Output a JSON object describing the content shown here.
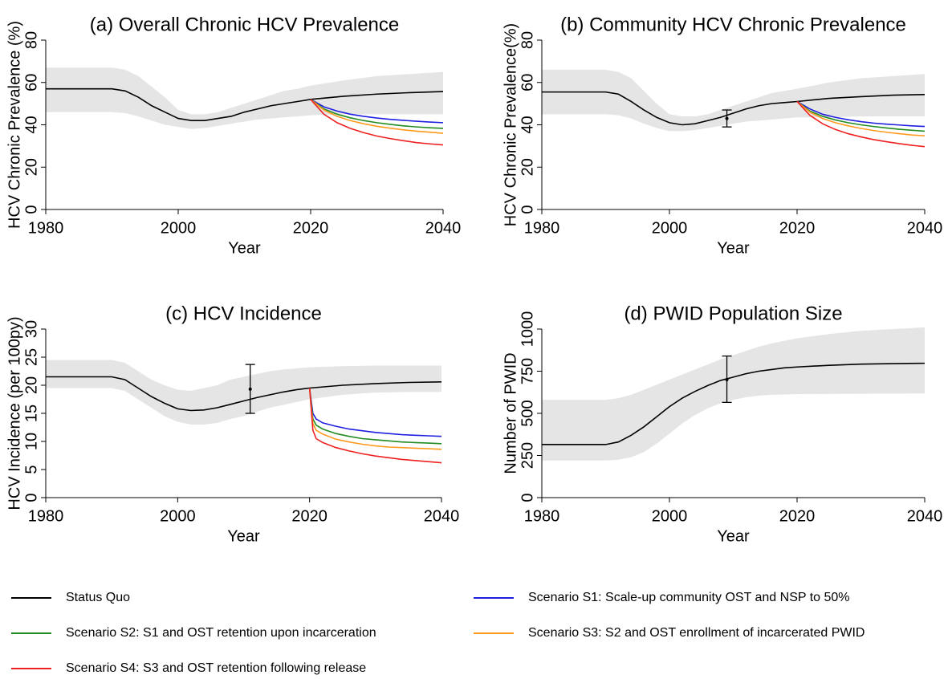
{
  "chart_data": [
    {
      "type": "line",
      "title": "(a) Overall Chronic HCV Prevalence",
      "xlabel": "Year",
      "ylabel": "HCV Chronic Prevalence (%)",
      "xlim": [
        1980,
        2040
      ],
      "xticks": [
        1980,
        2000,
        2020,
        2040
      ],
      "ylim": [
        0,
        80
      ],
      "yticks": [
        0,
        20,
        40,
        60,
        80
      ],
      "band": {
        "color": "#e5e5e5",
        "x": [
          1980,
          1985,
          1990,
          1992,
          1994,
          1996,
          1998,
          2000,
          2002,
          2004,
          2006,
          2008,
          2010,
          2012,
          2014,
          2016,
          2018,
          2020,
          2025,
          2030,
          2035,
          2040
        ],
        "upper": [
          67,
          67,
          67,
          66,
          63,
          58,
          53,
          47,
          45,
          45,
          46,
          48,
          50,
          52,
          54,
          56,
          57,
          58.5,
          61,
          63,
          64,
          65
        ],
        "lower": [
          46,
          46,
          46,
          45.5,
          44,
          42,
          40,
          39,
          38,
          38.5,
          39.5,
          40.5,
          41.5,
          42.5,
          43,
          43.5,
          44,
          44.5,
          45,
          45,
          45,
          45
        ]
      },
      "series": [
        {
          "color": "#000000",
          "x": [
            1980,
            1985,
            1990,
            1992,
            1994,
            1996,
            1998,
            2000,
            2002,
            2004,
            2006,
            2008,
            2010,
            2012,
            2014,
            2016,
            2018,
            2020,
            2025,
            2030,
            2035,
            2040
          ],
          "values": [
            57,
            57,
            57,
            56,
            53,
            49,
            46,
            43,
            42,
            42,
            43,
            44,
            46,
            47.5,
            49,
            50,
            51,
            52,
            53.5,
            54.5,
            55.2,
            55.7
          ]
        },
        {
          "color": "#1f1fe0",
          "x": [
            2020,
            2022,
            2024,
            2026,
            2028,
            2030,
            2032,
            2034,
            2036,
            2038,
            2040
          ],
          "values": [
            52,
            48.5,
            46.5,
            45,
            44,
            43.2,
            42.6,
            42.1,
            41.7,
            41.3,
            41
          ]
        },
        {
          "color": "#228b22",
          "x": [
            2020,
            2022,
            2024,
            2026,
            2028,
            2030,
            2032,
            2034,
            2036,
            2038,
            2040
          ],
          "values": [
            52,
            47.5,
            45,
            43.3,
            42,
            41,
            40.2,
            39.5,
            39,
            38.6,
            38.3
          ]
        },
        {
          "color": "#ff9a1f",
          "x": [
            2020,
            2022,
            2024,
            2026,
            2028,
            2030,
            2032,
            2034,
            2036,
            2038,
            2040
          ],
          "values": [
            52,
            47,
            44,
            42,
            40.5,
            39.3,
            38.4,
            37.6,
            37,
            36.5,
            36
          ]
        },
        {
          "color": "#ee2020",
          "x": [
            2020,
            2022,
            2024,
            2026,
            2028,
            2030,
            2032,
            2034,
            2036,
            2038,
            2040
          ],
          "values": [
            52,
            45,
            41,
            38.3,
            36.3,
            34.7,
            33.5,
            32.5,
            31.6,
            31,
            30.5
          ]
        }
      ]
    },
    {
      "type": "line",
      "title": "(b) Community HCV Chronic Prevalence",
      "xlabel": "Year",
      "ylabel": "HCV Chronic Prevalence(%)",
      "xlim": [
        1980,
        2040
      ],
      "xticks": [
        1980,
        2000,
        2020,
        2040
      ],
      "ylim": [
        0,
        80
      ],
      "yticks": [
        0,
        20,
        40,
        60,
        80
      ],
      "band": {
        "color": "#e5e5e5",
        "x": [
          1980,
          1985,
          1990,
          1992,
          1994,
          1996,
          1998,
          2000,
          2002,
          2004,
          2006,
          2008,
          2010,
          2012,
          2014,
          2016,
          2018,
          2020,
          2025,
          2030,
          2035,
          2040
        ],
        "upper": [
          66,
          66,
          66,
          65,
          62,
          56,
          50,
          45,
          44,
          44,
          45,
          47,
          49,
          51,
          53,
          55,
          56,
          57,
          60,
          62,
          63,
          64
        ],
        "lower": [
          45,
          45,
          45,
          44.5,
          43,
          40.5,
          38.5,
          37,
          37,
          37.5,
          38.5,
          39.5,
          40.5,
          41.5,
          42,
          42.5,
          43,
          43.5,
          43.5,
          44,
          44,
          44
        ]
      },
      "series": [
        {
          "color": "#000000",
          "x": [
            1980,
            1985,
            1990,
            1992,
            1994,
            1996,
            1998,
            2000,
            2002,
            2004,
            2006,
            2008,
            2010,
            2012,
            2014,
            2016,
            2018,
            2020,
            2025,
            2030,
            2035,
            2040
          ],
          "values": [
            55.5,
            55.5,
            55.5,
            54.5,
            51,
            47,
            43.5,
            41,
            40,
            40.5,
            42,
            43.5,
            45.5,
            47.5,
            49,
            50,
            50.5,
            51,
            52.5,
            53.3,
            54,
            54.3
          ]
        },
        {
          "color": "#1f1fe0",
          "x": [
            2020,
            2022,
            2024,
            2026,
            2028,
            2030,
            2032,
            2034,
            2036,
            2038,
            2040
          ],
          "values": [
            51,
            47.5,
            45,
            43.5,
            42.4,
            41.5,
            40.8,
            40.3,
            39.9,
            39.5,
            39.2
          ]
        },
        {
          "color": "#228b22",
          "x": [
            2020,
            2022,
            2024,
            2026,
            2028,
            2030,
            2032,
            2034,
            2036,
            2038,
            2040
          ],
          "values": [
            51,
            46.5,
            44,
            42.3,
            41,
            40,
            39.2,
            38.5,
            37.9,
            37.4,
            37
          ]
        },
        {
          "color": "#ff9a1f",
          "x": [
            2020,
            2022,
            2024,
            2026,
            2028,
            2030,
            2032,
            2034,
            2036,
            2038,
            2040
          ],
          "values": [
            51,
            46,
            43,
            41,
            39.5,
            38.3,
            37.3,
            36.5,
            35.8,
            35.2,
            34.8
          ]
        },
        {
          "color": "#ee2020",
          "x": [
            2020,
            2022,
            2024,
            2026,
            2028,
            2030,
            2032,
            2034,
            2036,
            2038,
            2040
          ],
          "values": [
            51,
            44.5,
            40.5,
            37.8,
            35.8,
            34.3,
            33,
            32,
            31.1,
            30.3,
            29.7
          ]
        }
      ],
      "error_bar": {
        "x": 2009,
        "value": 43,
        "low": 39,
        "high": 47
      }
    },
    {
      "type": "line",
      "title": "(c) HCV Incidence",
      "xlabel": "Year",
      "ylabel": "HCV Incidence (per 100py)",
      "xlim": [
        1980,
        2040
      ],
      "xticks": [
        1980,
        2000,
        2020,
        2040
      ],
      "ylim": [
        0,
        30
      ],
      "yticks": [
        0,
        5,
        10,
        15,
        20,
        25,
        30
      ],
      "band": {
        "color": "#e5e5e5",
        "x": [
          1980,
          1985,
          1990,
          1992,
          1994,
          1996,
          1998,
          2000,
          2002,
          2004,
          2006,
          2008,
          2010,
          2012,
          2014,
          2016,
          2018,
          2020,
          2025,
          2030,
          2035,
          2040
        ],
        "upper": [
          24.5,
          24.5,
          24.5,
          24,
          22.5,
          21,
          20,
          19.2,
          19,
          19.5,
          20,
          21,
          21.5,
          22,
          22.5,
          22.8,
          23,
          23.2,
          23.4,
          23.5,
          23.5,
          23.5
        ],
        "lower": [
          19.5,
          19.5,
          19.5,
          19,
          17.5,
          16,
          14.5,
          13.5,
          13,
          13,
          13.3,
          14,
          14.5,
          15.3,
          16,
          16.5,
          17,
          17.5,
          18.3,
          18.7,
          18.8,
          18.8
        ]
      },
      "series": [
        {
          "color": "#000000",
          "x": [
            1980,
            1985,
            1990,
            1992,
            1994,
            1996,
            1998,
            2000,
            2002,
            2004,
            2006,
            2008,
            2010,
            2012,
            2014,
            2016,
            2018,
            2020,
            2025,
            2030,
            2035,
            2040
          ],
          "values": [
            21.5,
            21.5,
            21.5,
            21,
            19.5,
            18,
            16.8,
            15.8,
            15.5,
            15.6,
            16,
            16.6,
            17.2,
            17.8,
            18.3,
            18.8,
            19.2,
            19.5,
            20,
            20.3,
            20.5,
            20.6
          ]
        },
        {
          "color": "#1f1fe0",
          "x": [
            2020,
            2020.5,
            2021,
            2022,
            2024,
            2026,
            2028,
            2030,
            2032,
            2034,
            2036,
            2038,
            2040
          ],
          "values": [
            19.5,
            15,
            14,
            13.3,
            12.7,
            12.2,
            11.9,
            11.6,
            11.4,
            11.2,
            11.1,
            11,
            10.9
          ]
        },
        {
          "color": "#228b22",
          "x": [
            2020,
            2020.5,
            2021,
            2022,
            2024,
            2026,
            2028,
            2030,
            2032,
            2034,
            2036,
            2038,
            2040
          ],
          "values": [
            19.5,
            14,
            12.9,
            12.2,
            11.4,
            10.9,
            10.5,
            10.3,
            10.1,
            9.9,
            9.8,
            9.7,
            9.6
          ]
        },
        {
          "color": "#ff9a1f",
          "x": [
            2020,
            2020.5,
            2021,
            2022,
            2024,
            2026,
            2028,
            2030,
            2032,
            2034,
            2036,
            2038,
            2040
          ],
          "values": [
            19.5,
            13.2,
            12,
            11.3,
            10.4,
            9.9,
            9.5,
            9.2,
            9,
            8.9,
            8.8,
            8.7,
            8.6
          ]
        },
        {
          "color": "#ee2020",
          "x": [
            2020,
            2020.5,
            2021,
            2022,
            2024,
            2026,
            2028,
            2030,
            2032,
            2034,
            2036,
            2038,
            2040
          ],
          "values": [
            19.5,
            12,
            10.5,
            9.8,
            8.9,
            8.3,
            7.8,
            7.4,
            7.1,
            6.8,
            6.6,
            6.4,
            6.2
          ]
        }
      ],
      "error_bar": {
        "x": 2011,
        "value": 19.3,
        "low": 15,
        "high": 23.7
      }
    },
    {
      "type": "line",
      "title": "(d) PWID Population Size",
      "xlabel": "Year",
      "ylabel": "Number of PWID",
      "xlim": [
        1980,
        2040
      ],
      "xticks": [
        1980,
        2000,
        2020,
        2040
      ],
      "ylim": [
        0,
        1000
      ],
      "yticks": [
        0,
        250,
        500,
        750,
        1000
      ],
      "band": {
        "color": "#e5e5e5",
        "x": [
          1980,
          1985,
          1990,
          1992,
          1994,
          1996,
          1998,
          2000,
          2002,
          2004,
          2006,
          2008,
          2010,
          2012,
          2014,
          2016,
          2018,
          2020,
          2025,
          2030,
          2035,
          2040
        ],
        "upper": [
          580,
          580,
          580,
          590,
          610,
          640,
          670,
          700,
          730,
          760,
          790,
          820,
          845,
          870,
          895,
          915,
          930,
          945,
          970,
          990,
          1000,
          1010
        ],
        "lower": [
          220,
          220,
          220,
          225,
          240,
          270,
          320,
          380,
          440,
          490,
          530,
          560,
          580,
          595,
          605,
          610,
          612,
          614,
          615,
          616,
          617,
          618
        ]
      },
      "series": [
        {
          "color": "#000000",
          "x": [
            1980,
            1985,
            1990,
            1992,
            1994,
            1996,
            1998,
            2000,
            2002,
            2004,
            2006,
            2008,
            2010,
            2012,
            2014,
            2016,
            2018,
            2020,
            2025,
            2030,
            2035,
            2040
          ],
          "values": [
            315,
            315,
            315,
            330,
            370,
            420,
            480,
            540,
            590,
            630,
            665,
            695,
            715,
            735,
            750,
            760,
            770,
            775,
            785,
            792,
            795,
            797
          ]
        }
      ],
      "error_bar": {
        "x": 2009,
        "value": 700,
        "low": 565,
        "high": 840
      }
    }
  ],
  "legend": [
    {
      "name": "Status Quo",
      "color": "#000000"
    },
    {
      "name": "Scenario S1: Scale-up community OST and NSP to 50%",
      "color": "#1f1fe0"
    },
    {
      "name": "Scenario S2: S1 and OST retention upon incarceration",
      "color": "#228b22"
    },
    {
      "name": "Scenario S3: S2 and OST enrollment of incarcerated PWID",
      "color": "#ff9a1f"
    },
    {
      "name": "Scenario S4: S3 and OST retention following release",
      "color": "#ee2020"
    }
  ]
}
